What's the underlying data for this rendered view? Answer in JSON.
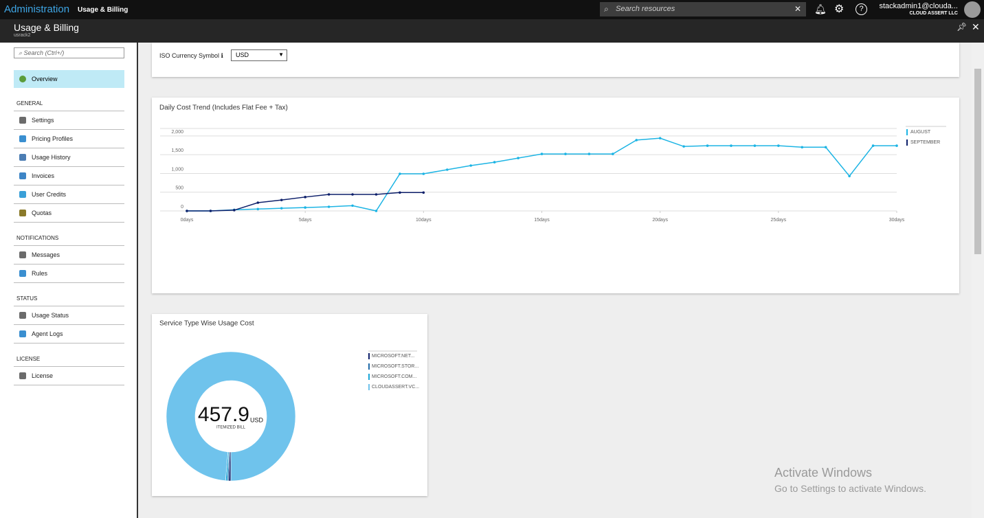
{
  "topbar": {
    "brand": "Administration",
    "breadcrumb": "Usage & Billing",
    "search_placeholder": "Search resources",
    "user": "stackadmin1@clouda...",
    "org": "CLOUD ASSERT LLC"
  },
  "blade": {
    "title": "Usage & Billing",
    "subtitle": "usrack2"
  },
  "sidebar": {
    "search_placeholder": "Search (Ctrl+/)",
    "active": "Overview",
    "sections": [
      {
        "title": "GENERAL",
        "items": [
          "Settings",
          "Pricing Profiles",
          "Usage History",
          "Invoices",
          "User Credits",
          "Quotas"
        ]
      },
      {
        "title": "NOTIFICATIONS",
        "items": [
          "Messages",
          "Rules"
        ]
      },
      {
        "title": "STATUS",
        "items": [
          "Usage Status",
          "Agent Logs"
        ]
      },
      {
        "title": "LICENSE",
        "items": [
          "License"
        ]
      }
    ]
  },
  "currency": {
    "label": "ISO Currency Symbol",
    "value": "USD"
  },
  "chart_data": [
    {
      "type": "line",
      "title": "Daily Cost Trend (Includes Flat Fee + Tax)",
      "x": [
        0,
        1,
        2,
        3,
        4,
        5,
        6,
        7,
        8,
        9,
        10,
        11,
        12,
        13,
        14,
        15,
        16,
        17,
        18,
        19,
        20,
        21,
        22,
        23,
        24,
        25,
        26,
        27,
        28,
        29,
        30
      ],
      "xlim": [
        0,
        30
      ],
      "xticks": [
        {
          "value": 0,
          "label": "0days"
        },
        {
          "value": 5,
          "label": "5days"
        },
        {
          "value": 10,
          "label": "10days"
        },
        {
          "value": 15,
          "label": "15days"
        },
        {
          "value": 20,
          "label": "20days"
        },
        {
          "value": 25,
          "label": "25days"
        },
        {
          "value": 30,
          "label": "30days"
        }
      ],
      "ylim": [
        0,
        2200
      ],
      "yticks": [
        0,
        500,
        {
          "value": 1000,
          "label": "1,000"
        },
        {
          "value": 1500,
          "label": "1,500"
        },
        {
          "value": 2000,
          "label": "2,000"
        }
      ],
      "grid": true,
      "legend": "right",
      "series": [
        {
          "name": "AUGUST",
          "color": "#1cb4e4",
          "values": [
            0,
            0,
            30,
            50,
            70,
            90,
            110,
            140,
            0,
            990,
            990,
            1100,
            1210,
            1300,
            1410,
            1520,
            1520,
            1520,
            1520,
            1890,
            1940,
            1720,
            1740,
            1740,
            1740,
            1740,
            1700,
            1700,
            930,
            1740,
            1740
          ]
        },
        {
          "name": "SEPTEMBER",
          "color": "#0d1f6a",
          "values": [
            0,
            0,
            20,
            220,
            290,
            370,
            440,
            440,
            440,
            490,
            490,
            null,
            null,
            null,
            null,
            null,
            null,
            null,
            null,
            null,
            null,
            null,
            null,
            null,
            null,
            null,
            null,
            null,
            null,
            null,
            null
          ]
        }
      ]
    },
    {
      "type": "pie",
      "title": "Service Type Wise Usage Cost",
      "categories": [
        "MICROSOFT.NET...",
        "MICROSOFT.STOR...",
        "MICROSOFT.COM...",
        "CLOUDASSERT.VC..."
      ],
      "values": [
        2.5,
        1.5,
        2,
        451.9
      ],
      "colors": [
        "#0d1f6a",
        "#1f6aa8",
        "#1aa6d8",
        "#6fc3ec"
      ],
      "total": 457.9,
      "unit": "USD",
      "caption": "ITEMIZED BILL",
      "legend": "right"
    }
  ],
  "watermark": {
    "title": "Activate Windows",
    "text": "Go to Settings to activate Windows."
  }
}
